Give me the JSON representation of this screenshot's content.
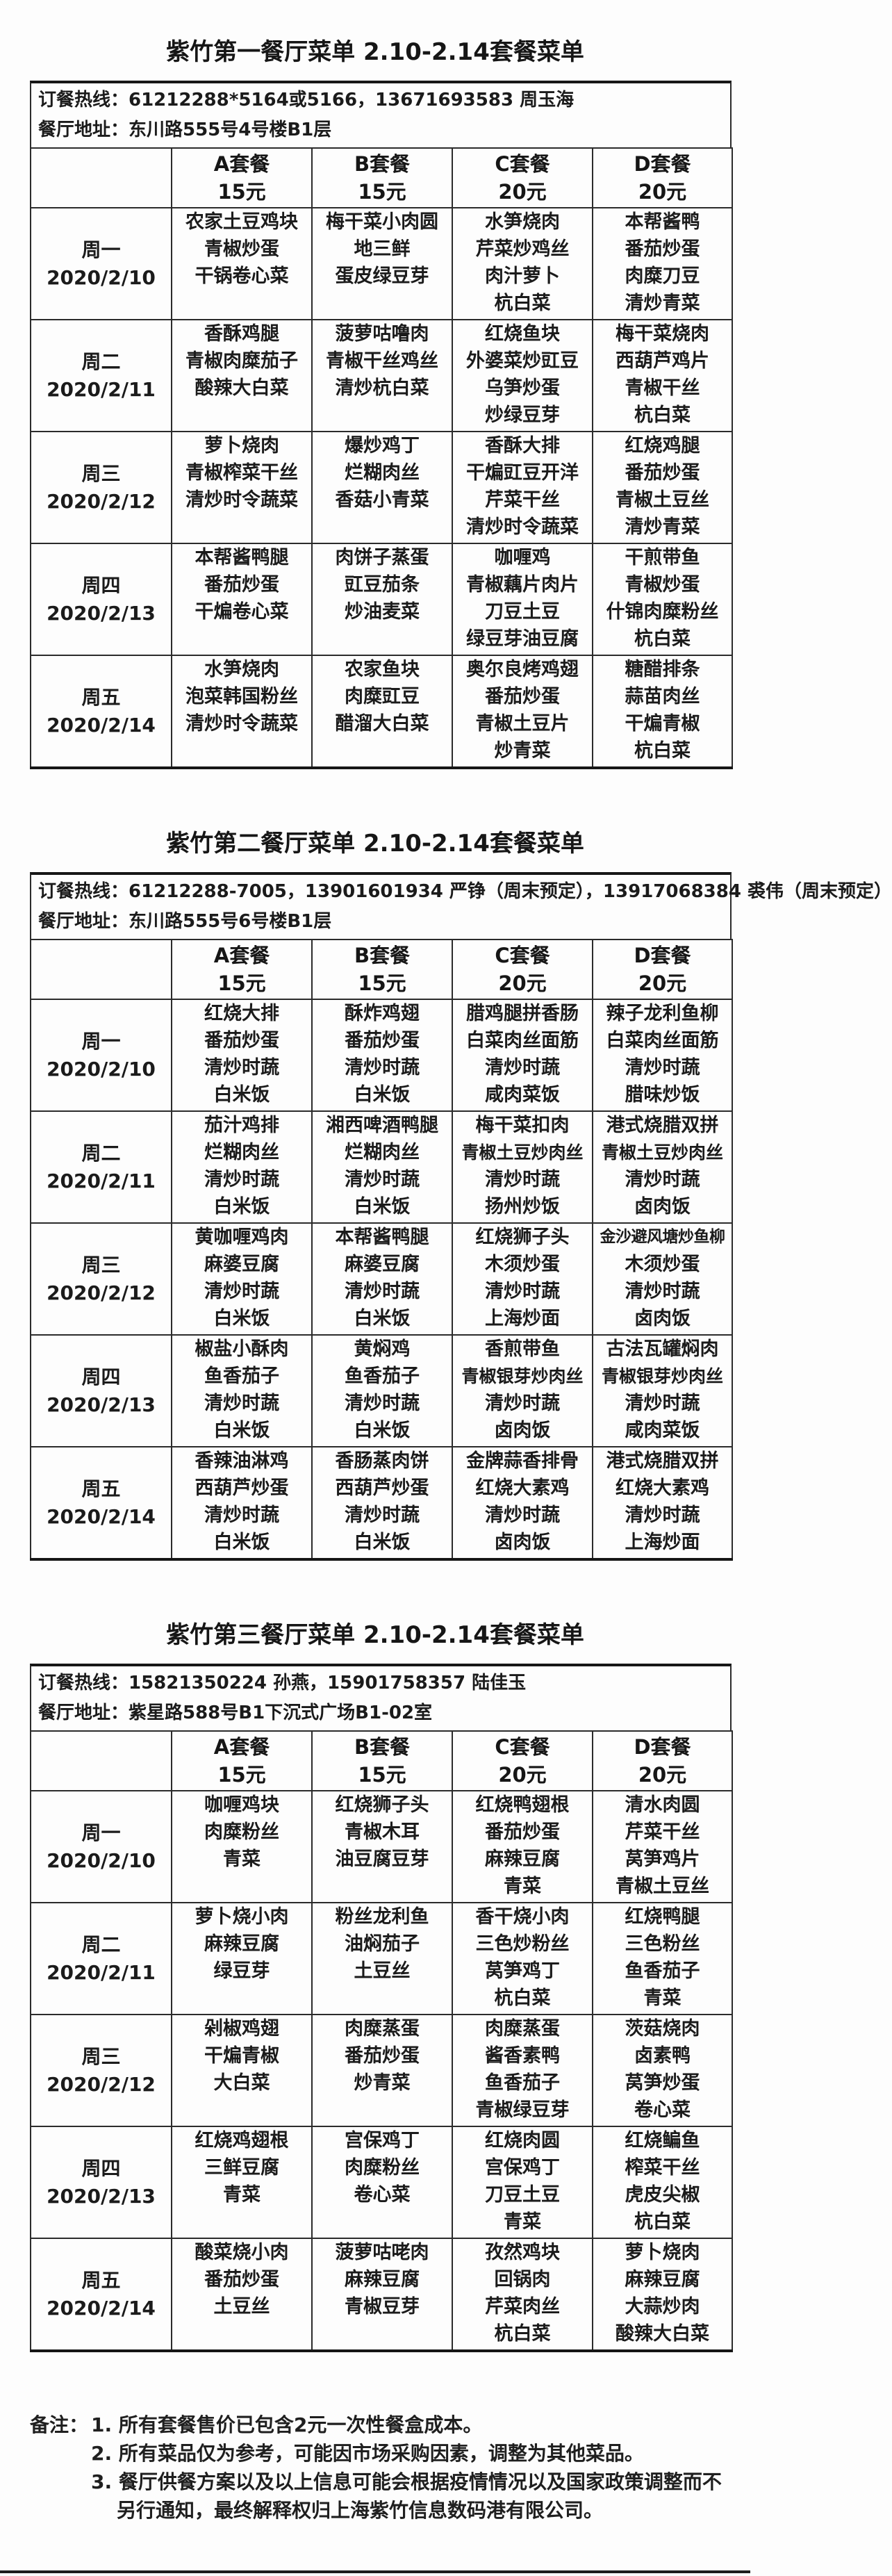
{
  "menus": [
    {
      "title": "紫竹第一餐厅菜单 2.10-2.14套餐菜单",
      "hotline": "订餐热线：61212288*5164或5166，13671693583 周玉海",
      "address": "餐厅地址：东川路555号4号楼B1层",
      "sets": [
        {
          "name": "A套餐",
          "price": "15元"
        },
        {
          "name": "B套餐",
          "price": "15元"
        },
        {
          "name": "C套餐",
          "price": "20元"
        },
        {
          "name": "D套餐",
          "price": "20元"
        }
      ],
      "days": [
        {
          "day": "周一",
          "date": "2020/2/10",
          "dishes": [
            [
              "农家土豆鸡块",
              "青椒炒蛋",
              "干锅卷心菜"
            ],
            [
              "梅干菜小肉圆",
              "地三鲜",
              "蛋皮绿豆芽"
            ],
            [
              "水笋烧肉",
              "芹菜炒鸡丝",
              "肉汁萝卜",
              "杭白菜"
            ],
            [
              "本帮酱鸭",
              "番茄炒蛋",
              "肉糜刀豆",
              "清炒青菜"
            ]
          ]
        },
        {
          "day": "周二",
          "date": "2020/2/11",
          "dishes": [
            [
              "香酥鸡腿",
              "青椒肉糜茄子",
              "酸辣大白菜"
            ],
            [
              "菠萝咕噜肉",
              "青椒干丝鸡丝",
              "清炒杭白菜"
            ],
            [
              "红烧鱼块",
              "外婆菜炒豇豆",
              "乌笋炒蛋",
              "炒绿豆芽"
            ],
            [
              "梅干菜烧肉",
              "西葫芦鸡片",
              "青椒干丝",
              "杭白菜"
            ]
          ]
        },
        {
          "day": "周三",
          "date": "2020/2/12",
          "dishes": [
            [
              "萝卜烧肉",
              "青椒榨菜干丝",
              "清炒时令蔬菜"
            ],
            [
              "爆炒鸡丁",
              "烂糊肉丝",
              "香菇小青菜"
            ],
            [
              "香酥大排",
              "干煸豇豆开洋",
              "芹菜干丝",
              "清炒时令蔬菜"
            ],
            [
              "红烧鸡腿",
              "番茄炒蛋",
              "青椒土豆丝",
              "清炒青菜"
            ]
          ]
        },
        {
          "day": "周四",
          "date": "2020/2/13",
          "dishes": [
            [
              "本帮酱鸭腿",
              "番茄炒蛋",
              "干煸卷心菜"
            ],
            [
              "肉饼子蒸蛋",
              "豇豆茄条",
              "炒油麦菜"
            ],
            [
              "咖喱鸡",
              "青椒藕片肉片",
              "刀豆土豆",
              "绿豆芽油豆腐"
            ],
            [
              "干煎带鱼",
              "青椒炒蛋",
              "什锦肉糜粉丝",
              "杭白菜"
            ]
          ]
        },
        {
          "day": "周五",
          "date": "2020/2/14",
          "dishes": [
            [
              "水笋烧肉",
              "泡菜韩国粉丝",
              "清炒时令蔬菜"
            ],
            [
              "农家鱼块",
              "肉糜豇豆",
              "醋溜大白菜"
            ],
            [
              "奥尔良烤鸡翅",
              "番茄炒蛋",
              "青椒土豆片",
              "炒青菜"
            ],
            [
              "糖醋排条",
              "蒜苗肉丝",
              "干煸青椒",
              "杭白菜"
            ]
          ]
        }
      ]
    },
    {
      "title": "紫竹第二餐厅菜单 2.10-2.14套餐菜单",
      "hotline": "订餐热线：61212288-7005，13901601934 严铮（周末预定），13917068384 裘伟（周末预定）",
      "address": "餐厅地址：东川路555号6号楼B1层",
      "sets": [
        {
          "name": "A套餐",
          "price": "15元"
        },
        {
          "name": "B套餐",
          "price": "15元"
        },
        {
          "name": "C套餐",
          "price": "20元"
        },
        {
          "name": "D套餐",
          "price": "20元"
        }
      ],
      "days": [
        {
          "day": "周一",
          "date": "2020/2/10",
          "dishes": [
            [
              "红烧大排",
              "番茄炒蛋",
              "清炒时蔬",
              "白米饭"
            ],
            [
              "酥炸鸡翅",
              "番茄炒蛋",
              "清炒时蔬",
              "白米饭"
            ],
            [
              "腊鸡腿拼香肠",
              "白菜肉丝面筋",
              "清炒时蔬",
              "咸肉菜饭"
            ],
            [
              "辣子龙利鱼柳",
              "白菜肉丝面筋",
              "清炒时蔬",
              "腊味炒饭"
            ]
          ]
        },
        {
          "day": "周二",
          "date": "2020/2/11",
          "dishes": [
            [
              "茄汁鸡排",
              "烂糊肉丝",
              "清炒时蔬",
              "白米饭"
            ],
            [
              "湘西啤酒鸭腿",
              "烂糊肉丝",
              "清炒时蔬",
              "白米饭"
            ],
            [
              "梅干菜扣肉",
              "青椒土豆炒肉丝",
              "清炒时蔬",
              "扬州炒饭"
            ],
            [
              "港式烧腊双拼",
              "青椒土豆炒肉丝",
              "清炒时蔬",
              "卤肉饭"
            ]
          ]
        },
        {
          "day": "周三",
          "date": "2020/2/12",
          "dishes": [
            [
              "黄咖喱鸡肉",
              "麻婆豆腐",
              "清炒时蔬",
              "白米饭"
            ],
            [
              "本帮酱鸭腿",
              "麻婆豆腐",
              "清炒时蔬",
              "白米饭"
            ],
            [
              "红烧狮子头",
              "木须炒蛋",
              "清炒时蔬",
              "上海炒面"
            ],
            [
              "金沙避风塘炒鱼柳",
              "木须炒蛋",
              "清炒时蔬",
              "卤肉饭"
            ]
          ]
        },
        {
          "day": "周四",
          "date": "2020/2/13",
          "dishes": [
            [
              "椒盐小酥肉",
              "鱼香茄子",
              "清炒时蔬",
              "白米饭"
            ],
            [
              "黄焖鸡",
              "鱼香茄子",
              "清炒时蔬",
              "白米饭"
            ],
            [
              "香煎带鱼",
              "青椒银芽炒肉丝",
              "清炒时蔬",
              "卤肉饭"
            ],
            [
              "古法瓦罐焖肉",
              "青椒银芽炒肉丝",
              "清炒时蔬",
              "咸肉菜饭"
            ]
          ]
        },
        {
          "day": "周五",
          "date": "2020/2/14",
          "dishes": [
            [
              "香辣油淋鸡",
              "西葫芦炒蛋",
              "清炒时蔬",
              "白米饭"
            ],
            [
              "香肠蒸肉饼",
              "西葫芦炒蛋",
              "清炒时蔬",
              "白米饭"
            ],
            [
              "金牌蒜香排骨",
              "红烧大素鸡",
              "清炒时蔬",
              "卤肉饭"
            ],
            [
              "港式烧腊双拼",
              "红烧大素鸡",
              "清炒时蔬",
              "上海炒面"
            ]
          ]
        }
      ]
    },
    {
      "title": "紫竹第三餐厅菜单 2.10-2.14套餐菜单",
      "hotline": "订餐热线：15821350224 孙燕，15901758357 陆佳玉",
      "address": "餐厅地址：紫星路588号B1下沉式广场B1-02室",
      "sets": [
        {
          "name": "A套餐",
          "price": "15元"
        },
        {
          "name": "B套餐",
          "price": "15元"
        },
        {
          "name": "C套餐",
          "price": "20元"
        },
        {
          "name": "D套餐",
          "price": "20元"
        }
      ],
      "days": [
        {
          "day": "周一",
          "date": "2020/2/10",
          "dishes": [
            [
              "咖喱鸡块",
              "肉糜粉丝",
              "青菜"
            ],
            [
              "红烧狮子头",
              "青椒木耳",
              "油豆腐豆芽"
            ],
            [
              "红烧鸭翅根",
              "番茄炒蛋",
              "麻辣豆腐",
              "青菜"
            ],
            [
              "清水肉圆",
              "芹菜干丝",
              "莴笋鸡片",
              "青椒土豆丝"
            ]
          ]
        },
        {
          "day": "周二",
          "date": "2020/2/11",
          "dishes": [
            [
              "萝卜烧小肉",
              "麻辣豆腐",
              "绿豆芽"
            ],
            [
              "粉丝龙利鱼",
              "油焖茄子",
              "土豆丝"
            ],
            [
              "香干烧小肉",
              "三色炒粉丝",
              "莴笋鸡丁",
              "杭白菜"
            ],
            [
              "红烧鸭腿",
              "三色粉丝",
              "鱼香茄子",
              "青菜"
            ]
          ]
        },
        {
          "day": "周三",
          "date": "2020/2/12",
          "dishes": [
            [
              "剁椒鸡翅",
              "干煸青椒",
              "大白菜"
            ],
            [
              "肉糜蒸蛋",
              "番茄炒蛋",
              "炒青菜"
            ],
            [
              "肉糜蒸蛋",
              "酱香素鸭",
              "鱼香茄子",
              "青椒绿豆芽"
            ],
            [
              "茨菇烧肉",
              "卤素鸭",
              "莴笋炒蛋",
              "卷心菜"
            ]
          ]
        },
        {
          "day": "周四",
          "date": "2020/2/13",
          "dishes": [
            [
              "红烧鸡翅根",
              "三鲜豆腐",
              "青菜"
            ],
            [
              "宫保鸡丁",
              "肉糜粉丝",
              "卷心菜"
            ],
            [
              "红烧肉圆",
              "宫保鸡丁",
              "刀豆土豆",
              "青菜"
            ],
            [
              "红烧鳊鱼",
              "榨菜干丝",
              "虎皮尖椒",
              "杭白菜"
            ]
          ]
        },
        {
          "day": "周五",
          "date": "2020/2/14",
          "dishes": [
            [
              "酸菜烧小肉",
              "番茄炒蛋",
              "土豆丝"
            ],
            [
              "菠萝咕咾肉",
              "麻辣豆腐",
              "青椒豆芽"
            ],
            [
              "孜然鸡块",
              "回锅肉",
              "芹菜肉丝",
              "杭白菜"
            ],
            [
              "萝卜烧肉",
              "麻辣豆腐",
              "大蒜炒肉",
              "酸辣大白菜"
            ]
          ]
        }
      ]
    }
  ],
  "notes": {
    "label": "备注：",
    "items": [
      "1. 所有套餐售价已包含2元一次性餐盒成本。",
      "2. 所有菜品仅为参考，可能因市场采购因素，调整为其他菜品。",
      "3. 餐厅供餐方案以及以上信息可能会根据疫情情况以及国家政策调整而不另行通知，最终解释权归上海紫竹信息数码港有限公司。"
    ]
  }
}
